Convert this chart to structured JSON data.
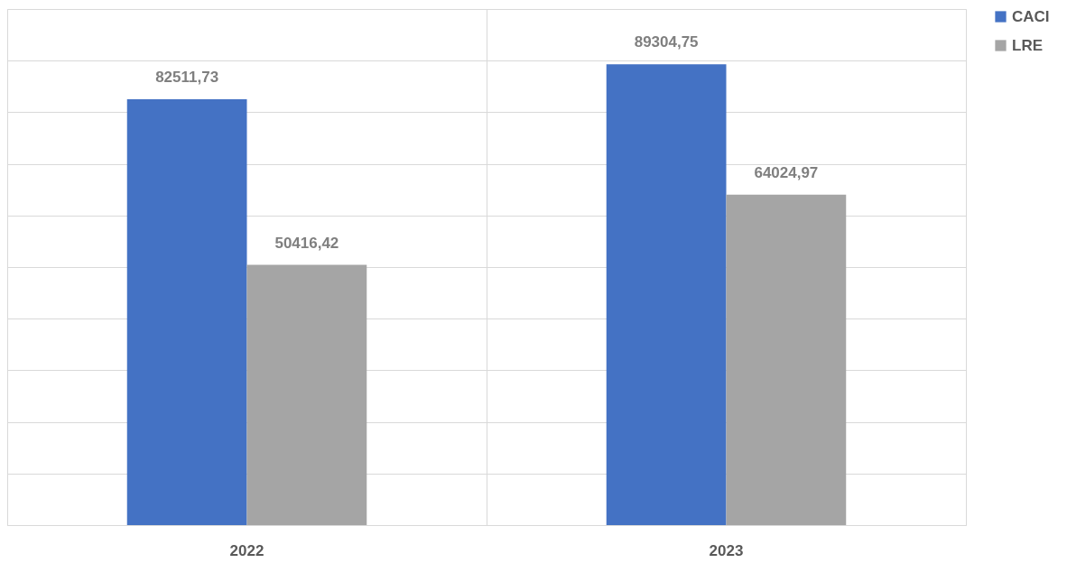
{
  "chart_data": {
    "type": "bar",
    "categories": [
      "2022",
      "2023"
    ],
    "series": [
      {
        "name": "CACI",
        "color": "#4472c4",
        "values": [
          82511.73,
          89304.75
        ],
        "value_labels": [
          "82511,73",
          "89304,75"
        ]
      },
      {
        "name": "LRE",
        "color": "#a5a5a5",
        "values": [
          50416.42,
          64024.97
        ],
        "value_labels": [
          "50416,42",
          "64024,97"
        ]
      }
    ],
    "ylim": [
      0,
      100000
    ],
    "yticks": [
      {
        "value": 0,
        "label": null
      },
      {
        "value": 10000,
        "label": null
      },
      {
        "value": 20000,
        "label": null
      },
      {
        "value": 30000,
        "label": null
      },
      {
        "value": 40000,
        "label": null
      },
      {
        "value": 50000,
        "label": null
      },
      {
        "value": 60000,
        "label": null
      },
      {
        "value": 70000,
        "label": null
      },
      {
        "value": 80000,
        "label": null
      },
      {
        "value": 90000,
        "label": null
      },
      {
        "value": 100000,
        "label": null
      }
    ],
    "tick_labels": "x",
    "grid": true,
    "legend": "right"
  }
}
